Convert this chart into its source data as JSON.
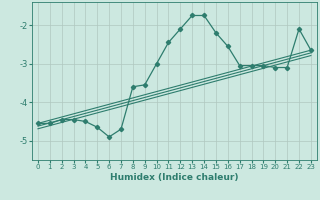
{
  "title": "",
  "xlabel": "Humidex (Indice chaleur)",
  "ylabel": "",
  "bg_color": "#cce8e0",
  "line_color": "#2e7d6e",
  "grid_color": "#b0c8c0",
  "xlim": [
    -0.5,
    23.5
  ],
  "ylim": [
    -5.5,
    -1.4
  ],
  "yticks": [
    -5,
    -4,
    -3,
    -2
  ],
  "xticks": [
    0,
    1,
    2,
    3,
    4,
    5,
    6,
    7,
    8,
    9,
    10,
    11,
    12,
    13,
    14,
    15,
    16,
    17,
    18,
    19,
    20,
    21,
    22,
    23
  ],
  "main_line_x": [
    0,
    1,
    2,
    3,
    4,
    5,
    6,
    7,
    8,
    9,
    10,
    11,
    12,
    13,
    14,
    15,
    16,
    17,
    18,
    19,
    20,
    21,
    22,
    23
  ],
  "main_line_y": [
    -4.55,
    -4.55,
    -4.45,
    -4.45,
    -4.5,
    -4.65,
    -4.9,
    -4.7,
    -3.6,
    -3.55,
    -3.0,
    -2.45,
    -2.1,
    -1.75,
    -1.75,
    -2.2,
    -2.55,
    -3.05,
    -3.05,
    -3.05,
    -3.1,
    -3.1,
    -2.1,
    -2.65
  ],
  "reg_lines": [
    {
      "x": [
        0,
        23
      ],
      "y": [
        -4.55,
        -2.65
      ]
    },
    {
      "x": [
        0,
        23
      ],
      "y": [
        -4.62,
        -2.72
      ]
    },
    {
      "x": [
        0,
        23
      ],
      "y": [
        -4.69,
        -2.79
      ]
    }
  ]
}
